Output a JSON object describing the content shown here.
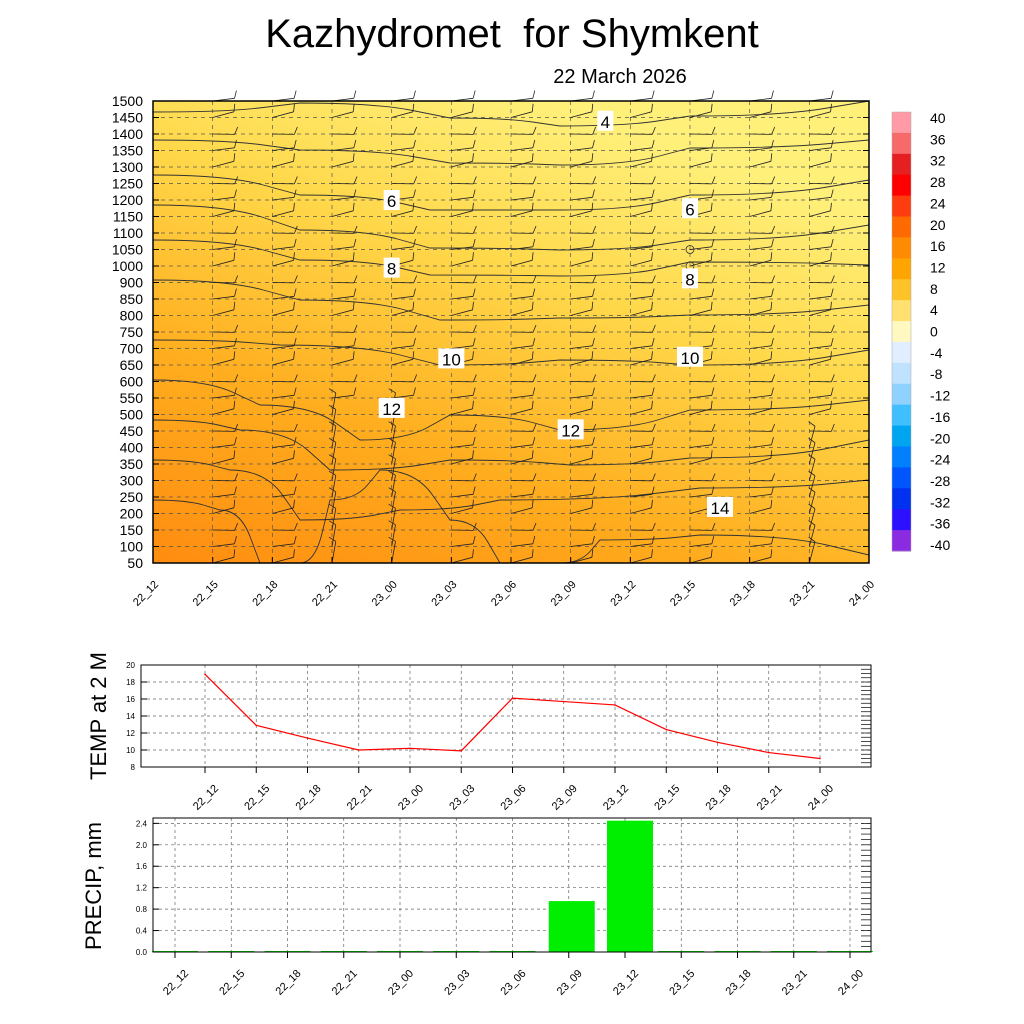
{
  "title": "Kazhydromet  for Shymkent",
  "subtitle": "22 March 2026",
  "colors": {
    "temp_line": "#ff0000",
    "precip_bar": "#00ee00",
    "background": "#ffffff"
  },
  "chart_data": [
    {
      "type": "heatmap",
      "name": "cross-section",
      "xlabel": "",
      "ylabel": "",
      "x": [
        "22_12",
        "22_15",
        "22_18",
        "22_21",
        "23_00",
        "23_03",
        "23_06",
        "23_09",
        "23_12",
        "23_15",
        "23_18",
        "23_21",
        "24_00"
      ],
      "y_ticks": [
        50,
        100,
        150,
        200,
        250,
        300,
        350,
        400,
        450,
        500,
        550,
        600,
        650,
        700,
        750,
        800,
        850,
        900,
        1000,
        1050,
        1100,
        1150,
        1200,
        1250,
        1300,
        1350,
        1400,
        1450,
        1500
      ],
      "y_range": [
        50,
        1500
      ],
      "contour_labels": [
        {
          "text": "4",
          "x": "23_12",
          "y": 1440
        },
        {
          "text": "6",
          "x": "23_00",
          "y": 1200
        },
        {
          "text": "6",
          "x": "23_15",
          "y": 1175
        },
        {
          "text": "8",
          "x": "23_00",
          "y": 990
        },
        {
          "text": "8",
          "x": "23_15",
          "y": 925
        },
        {
          "text": "10",
          "x": "23_03",
          "y": 670
        },
        {
          "text": "10",
          "x": "23_15",
          "y": 675
        },
        {
          "text": "12",
          "x": "23_00",
          "y": 520
        },
        {
          "text": "12",
          "x": "23_09",
          "y": 455
        },
        {
          "text": "14",
          "x": "23_15",
          "y": 220
        }
      ],
      "colorbar": {
        "labels": [
          "40",
          "36",
          "32",
          "28",
          "24",
          "20",
          "16",
          "12",
          "8",
          "4",
          "0",
          "-4",
          "-8",
          "-12",
          "-16",
          "-20",
          "-24",
          "-28",
          "-32",
          "-36",
          "-40"
        ],
        "colors": [
          "#ff9aa6",
          "#f66a6a",
          "#e62020",
          "#ff0000",
          "#ff3c10",
          "#ff6a00",
          "#ff8c00",
          "#ffa500",
          "#ffc32a",
          "#ffe070",
          "#fff8c0",
          "#e0eeff",
          "#bfe3ff",
          "#8fd2ff",
          "#40bfff",
          "#00a5f0",
          "#0080ff",
          "#0055ff",
          "#0030f0",
          "#2d10ff",
          "#8a2be2"
        ]
      }
    },
    {
      "type": "line",
      "name": "temperature",
      "ylabel": "TEMP at 2 M",
      "categories": [
        "22_12",
        "22_15",
        "22_18",
        "22_21",
        "23_00",
        "23_03",
        "23_06",
        "23_09",
        "23_12",
        "23_15",
        "23_18",
        "23_21",
        "24_00"
      ],
      "values": [
        18.9,
        12.9,
        11.4,
        10.0,
        10.2,
        9.9,
        16.1,
        15.7,
        15.3,
        12.4,
        10.9,
        9.7,
        9.0
      ],
      "yticks": [
        "8",
        "10",
        "12",
        "14",
        "16",
        "18",
        "20"
      ],
      "ylim": [
        8,
        20
      ]
    },
    {
      "type": "bar",
      "name": "precipitation",
      "ylabel": "PRECIP, mm",
      "categories": [
        "22_12",
        "22_15",
        "22_18",
        "22_21",
        "23_00",
        "23_03",
        "23_06",
        "23_09",
        "23_12",
        "23_15",
        "23_18",
        "23_21",
        "24_00"
      ],
      "values": [
        0,
        0,
        0,
        0,
        0,
        0,
        0,
        0.95,
        2.45,
        0,
        0,
        0,
        0
      ],
      "yticks": [
        "0.0",
        "0.4",
        "0.8",
        "1.2",
        "1.6",
        "2.0",
        "2.4"
      ],
      "ylim": [
        0,
        2.5
      ]
    }
  ]
}
